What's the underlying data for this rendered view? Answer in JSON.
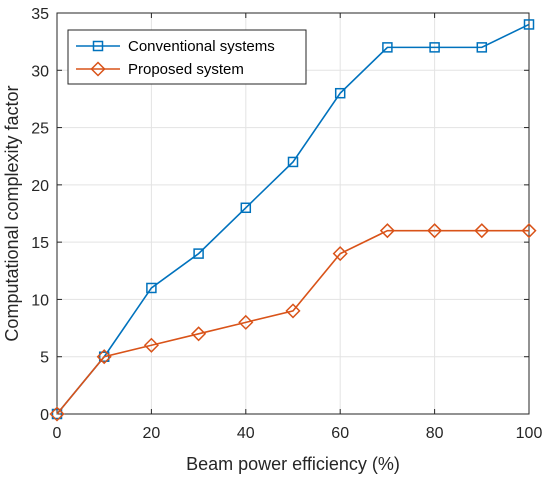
{
  "chart_data": {
    "type": "line",
    "xlabel": "Beam power efficiency (%)",
    "ylabel": "Computational complexity factor",
    "xlim": [
      0,
      100
    ],
    "ylim": [
      0,
      35
    ],
    "xticks": [
      0,
      20,
      40,
      60,
      80,
      100
    ],
    "yticks": [
      0,
      5,
      10,
      15,
      20,
      25,
      30,
      35
    ],
    "grid": true,
    "legend_position": "top-left",
    "x": [
      0,
      10,
      20,
      30,
      40,
      50,
      60,
      70,
      80,
      90,
      100
    ],
    "series": [
      {
        "name": "Conventional systems",
        "color": "#0072BD",
        "marker": "square",
        "values": [
          0,
          5,
          11,
          14,
          18,
          22,
          28,
          32,
          32,
          32,
          34
        ]
      },
      {
        "name": "Proposed system",
        "color": "#D95319",
        "marker": "diamond",
        "values": [
          0,
          5,
          6,
          7,
          8,
          9,
          14,
          16,
          16,
          16,
          16
        ]
      }
    ]
  }
}
